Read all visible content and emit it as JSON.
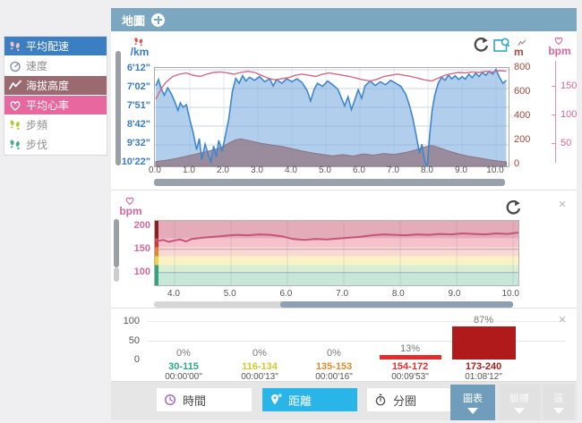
{
  "header": {
    "title": "地圖"
  },
  "sidebar": {
    "items": [
      {
        "id": "avg-pace",
        "label": "平均配速",
        "icon": "footprints-icon",
        "active": true,
        "bg": "#3b7ec1",
        "fg": "#ffffff",
        "icon_color": "#f3bfce"
      },
      {
        "id": "speed",
        "label": "速度",
        "icon": "speedometer-icon",
        "active": false,
        "bg": "#ffffff",
        "fg": "#8f8f8f",
        "icon_color": "#8a97ab"
      },
      {
        "id": "elevation",
        "label": "海拔高度",
        "icon": "elevation-zigzag-icon",
        "active": true,
        "bg": "#9b6a70",
        "fg": "#ffffff",
        "icon_color": "#ffffff"
      },
      {
        "id": "avg-hr",
        "label": "平均心率",
        "icon": "heart-icon",
        "active": true,
        "bg": "#e7679e",
        "fg": "#ffffff",
        "icon_color": "#ffffff"
      },
      {
        "id": "cadence",
        "label": "步頻",
        "icon": "footprints-icon",
        "active": false,
        "bg": "#ffffff",
        "fg": "#8f8f8f",
        "icon_color": "#b9c93e"
      },
      {
        "id": "stride",
        "label": "步伐",
        "icon": "footprints-icon",
        "active": false,
        "bg": "#ffffff",
        "fg": "#8f8f8f",
        "icon_color": "#49ab8c"
      }
    ]
  },
  "top_chart": {
    "pace_unit": "/km",
    "pace_ticks": [
      "6'12\"",
      "7'02\"",
      "7'51\"",
      "8'42\"",
      "9'32\"",
      "10'22\""
    ],
    "elev_unit": "m",
    "elev_ticks": [
      "800",
      "600",
      "400",
      "200",
      "0"
    ],
    "hr_unit": "bpm",
    "hr_ticks": [
      "150",
      "100",
      "50"
    ],
    "x_ticks": [
      "0.0",
      "1.0",
      "2.0",
      "3.0",
      "4.0",
      "5.0",
      "6.0",
      "7.0",
      "8.0",
      "9.0",
      "10.0"
    ]
  },
  "middle_chart": {
    "hr_unit": "bpm",
    "y_ticks": [
      "200",
      "150",
      "100"
    ],
    "x_ticks": [
      "4.0",
      "5.0",
      "6.0",
      "7.0",
      "8.0",
      "9.0",
      "10.0"
    ],
    "close_glyph": "×"
  },
  "bottom_chart": {
    "y_ticks": [
      "100",
      "50",
      "0"
    ],
    "close_glyph": "×",
    "zones": [
      {
        "range": "30-115",
        "pct": "0%",
        "time": "00:00'00\"",
        "value": 0,
        "label_color": "#2fa489",
        "bar_color": "#2fa489"
      },
      {
        "range": "116-134",
        "pct": "0%",
        "time": "00:00'13\"",
        "value": 0,
        "label_color": "#d4c832",
        "bar_color": "#d4c832"
      },
      {
        "range": "135-153",
        "pct": "0%",
        "time": "00:00'16\"",
        "value": 0,
        "label_color": "#e08a30",
        "bar_color": "#e08a30"
      },
      {
        "range": "154-172",
        "pct": "13%",
        "time": "00:09'53\"",
        "value": 13,
        "label_color": "#e03030",
        "bar_color": "#e62b2b"
      },
      {
        "range": "173-240",
        "pct": "87%",
        "time": "01:08'12\"",
        "value": 87,
        "label_color": "#a32020",
        "bar_color": "#b11a1a"
      }
    ]
  },
  "toolbar": {
    "axis_buttons": [
      {
        "label": "時間",
        "icon": "clock-icon",
        "selected": false
      },
      {
        "label": "距離",
        "icon": "distance-pin-icon",
        "selected": true
      },
      {
        "label": "分圈",
        "icon": "stopwatch-icon",
        "selected": false
      }
    ],
    "view_buttons": [
      {
        "label": "圖表",
        "primary": true
      },
      {
        "label": "脈搏",
        "primary": false
      },
      {
        "label": "區",
        "primary": false
      }
    ]
  },
  "colors": {
    "header_bg": "#7ca7c0",
    "pace_axis": "#3a7cc4",
    "elev_axis": "#9c4a42",
    "hr_axis": "#d4679c",
    "selected_button": "#2ab5e9",
    "primary_view_button": "#6f9dbb",
    "scrollbar": "#9aa0a6",
    "scrollbar_thumb_blue": "#8da0b3"
  },
  "chart_data": [
    {
      "id": "pace-elevation-heart-rate",
      "type": "area-line",
      "x_range": [
        0,
        10.35
      ],
      "grid": true,
      "series": [
        {
          "name": "平均配速",
          "unit": "/km",
          "color": "#3f86cf",
          "fill": "rgba(126,173,225,0.6)",
          "axis_ticks": [
            "6'12\"",
            "7'02\"",
            "7'51\"",
            "8'42\"",
            "9'32\"",
            "10'22\""
          ],
          "x": [
            0,
            0.08,
            0.15,
            0.25,
            0.35,
            0.45,
            0.55,
            0.65,
            0.72,
            0.8,
            0.9,
            1.0,
            1.1,
            1.2,
            1.28,
            1.35,
            1.45,
            1.55,
            1.62,
            1.7,
            1.78,
            1.85,
            1.95,
            2.05,
            2.15,
            2.25,
            2.35,
            2.45,
            2.55,
            2.65,
            2.75,
            2.9,
            3.05,
            3.2,
            3.35,
            3.45,
            3.55,
            3.7,
            3.85,
            4.0,
            4.15,
            4.3,
            4.45,
            4.55,
            4.65,
            4.75,
            4.9,
            5.05,
            5.2,
            5.35,
            5.45,
            5.55,
            5.65,
            5.75,
            5.85,
            5.95,
            6.05,
            6.15,
            6.3,
            6.45,
            6.6,
            6.75,
            6.9,
            7.05,
            7.2,
            7.35,
            7.45,
            7.55,
            7.65,
            7.75,
            7.82,
            7.9,
            7.98,
            8.05,
            8.12,
            8.2,
            8.3,
            8.4,
            8.5,
            8.6,
            8.7,
            8.8,
            8.9,
            9.0,
            9.1,
            9.2,
            9.3,
            9.4,
            9.5,
            9.6,
            9.7,
            9.8,
            9.9,
            10.0,
            10.1,
            10.2,
            10.3
          ],
          "y_seconds_per_km": [
            415,
            398,
            420,
            440,
            420,
            435,
            455,
            480,
            460,
            472,
            465,
            505,
            540,
            585,
            555,
            612,
            570,
            600,
            618,
            575,
            605,
            560,
            590,
            545,
            500,
            430,
            395,
            408,
            388,
            402,
            392,
            400,
            390,
            404,
            396,
            415,
            398,
            408,
            396,
            404,
            396,
            406,
            428,
            455,
            425,
            408,
            416,
            402,
            412,
            424,
            446,
            468,
            444,
            478,
            452,
            425,
            448,
            415,
            402,
            414,
            404,
            412,
            400,
            408,
            416,
            438,
            465,
            500,
            545,
            595,
            570,
            615,
            632,
            545,
            480,
            440,
            408,
            392,
            400,
            386,
            396,
            388,
            398,
            390,
            397,
            384,
            393,
            381,
            390,
            379,
            387,
            376,
            384,
            371,
            392,
            408,
            400
          ]
        },
        {
          "name": "海拔高度",
          "unit": "m",
          "color": "#8f7a88",
          "fill": "rgba(148,124,136,0.8)",
          "axis_range": [
            0,
            800
          ],
          "x": [
            0,
            0.3,
            0.6,
            0.9,
            1.2,
            1.5,
            1.8,
            2.0,
            2.2,
            2.35,
            2.5,
            2.7,
            2.9,
            3.1,
            3.4,
            3.7,
            4.0,
            4.3,
            4.6,
            4.9,
            5.2,
            5.5,
            5.8,
            6.1,
            6.4,
            6.7,
            7.0,
            7.3,
            7.6,
            7.9,
            8.1,
            8.3,
            8.6,
            8.9,
            9.2,
            9.5,
            9.8,
            10.05,
            10.3
          ],
          "y_m": [
            25,
            35,
            50,
            68,
            88,
            108,
            130,
            155,
            185,
            205,
            212,
            200,
            188,
            176,
            162,
            150,
            132,
            112,
            96,
            84,
            72,
            82,
            70,
            88,
            78,
            92,
            84,
            98,
            118,
            145,
            158,
            142,
            112,
            88,
            68,
            55,
            40,
            30,
            22
          ]
        },
        {
          "name": "平均心率",
          "unit": "bpm",
          "color": "#d06a88",
          "axis_ticks_visible": [
            50,
            100,
            150
          ],
          "x": [
            0,
            0.1,
            0.2,
            0.3,
            0.4,
            0.5,
            0.7,
            0.9,
            1.1,
            1.3,
            1.5,
            1.7,
            1.9,
            2.1,
            2.3,
            2.5,
            2.7,
            2.9,
            3.1,
            3.3,
            3.5,
            3.7,
            3.9,
            4.1,
            4.3,
            4.5,
            4.7,
            4.9,
            5.1,
            5.3,
            5.5,
            5.7,
            5.9,
            6.1,
            6.3,
            6.5,
            6.7,
            6.9,
            7.1,
            7.3,
            7.5,
            7.7,
            7.9,
            8.1,
            8.3,
            8.5,
            8.7,
            8.9,
            9.1,
            9.3,
            9.5,
            9.7,
            9.9,
            10.1,
            10.3
          ],
          "y_bpm": [
            128,
            140,
            150,
            158,
            163,
            168,
            172,
            174,
            170,
            168,
            172,
            175,
            176,
            174,
            172,
            175,
            177,
            175,
            170,
            165,
            162,
            164,
            166,
            170,
            172,
            170,
            168,
            172,
            174,
            172,
            170,
            168,
            165,
            162,
            160,
            163,
            168,
            170,
            172,
            170,
            168,
            165,
            162,
            160,
            165,
            170,
            173,
            175,
            174,
            176,
            175,
            177,
            176,
            178,
            177
          ]
        }
      ]
    },
    {
      "id": "heart-rate-detail",
      "type": "line",
      "x_range": [
        3.65,
        10.3
      ],
      "y_range_bpm": [
        72,
        211
      ],
      "zone_bands": [
        {
          "bpm_hi": 211,
          "bpm_lo": 173,
          "color": "#e4abb8"
        },
        {
          "bpm_hi": 173,
          "bpm_lo": 154,
          "color": "#f5c2cb"
        },
        {
          "bpm_hi": 154,
          "bpm_lo": 135,
          "color": "#fbd9d3"
        },
        {
          "bpm_hi": 135,
          "bpm_lo": 116,
          "color": "#f8f2c6"
        },
        {
          "bpm_hi": 116,
          "bpm_lo": 101,
          "color": "#daeed4"
        },
        {
          "bpm_hi": 101,
          "bpm_lo": 72,
          "color": "#c6e7d9"
        }
      ],
      "zone_strip": [
        {
          "bpm_hi": 211,
          "bpm_lo": 173,
          "color": "#8e2020"
        },
        {
          "bpm_hi": 173,
          "bpm_lo": 154,
          "color": "#dc3333"
        },
        {
          "bpm_hi": 154,
          "bpm_lo": 135,
          "color": "#e9822e"
        },
        {
          "bpm_hi": 135,
          "bpm_lo": 116,
          "color": "#ecd53a"
        },
        {
          "bpm_hi": 116,
          "bpm_lo": 72,
          "color": "#35a57e"
        }
      ],
      "series": [
        {
          "name": "心率",
          "unit": "bpm",
          "color": "#c4547c",
          "x": [
            3.65,
            3.7,
            3.8,
            3.9,
            4.0,
            4.1,
            4.2,
            4.3,
            4.5,
            4.7,
            4.9,
            5.1,
            5.3,
            5.5,
            5.7,
            5.9,
            6.1,
            6.3,
            6.5,
            6.7,
            6.9,
            7.1,
            7.3,
            7.5,
            7.7,
            7.9,
            8.1,
            8.3,
            8.5,
            8.7,
            8.9,
            9.1,
            9.3,
            9.5,
            9.7,
            9.9,
            10.1,
            10.25
          ],
          "y_bpm": [
            172,
            168,
            170,
            166,
            169,
            171,
            167,
            172,
            175,
            177,
            179,
            181,
            180,
            182,
            181,
            178,
            172,
            170,
            172,
            171,
            173,
            175,
            177,
            180,
            182,
            181,
            180,
            182,
            181,
            183,
            182,
            184,
            183,
            182,
            184,
            183,
            186,
            184
          ]
        }
      ]
    },
    {
      "id": "hr-zones",
      "type": "bar",
      "title": "",
      "categories": [
        "30-115",
        "116-134",
        "135-153",
        "154-172",
        "173-240"
      ],
      "values_pct": [
        0,
        0,
        0,
        13,
        87
      ],
      "times": [
        "00:00'00\"",
        "00:00'13\"",
        "00:00'16\"",
        "00:09'53\"",
        "01:08'12\""
      ],
      "ylim": [
        0,
        100
      ],
      "yticks": [
        0,
        50,
        100
      ],
      "grid": true,
      "legend": "none"
    }
  ]
}
